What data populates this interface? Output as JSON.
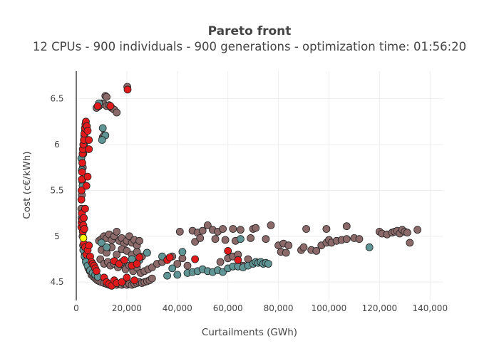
{
  "chart_data": {
    "type": "scatter",
    "title": "Pareto front",
    "subtitle": "12 CPUs - 900 individuals - 900 generations - optimization time: 01:56:20",
    "xlabel": "Curtailments (GWh)",
    "ylabel": "Cost (c€/kWh)",
    "xlim": [
      0,
      145000
    ],
    "ylim": [
      4.3,
      6.8
    ],
    "x_ticks": [
      {
        "value": 0,
        "label": "0"
      },
      {
        "value": 20000,
        "label": "20,000"
      },
      {
        "value": 40000,
        "label": "40,000"
      },
      {
        "value": 60000,
        "label": "60,000"
      },
      {
        "value": 80000,
        "label": "80,000"
      },
      {
        "value": 100000,
        "label": "100,000"
      },
      {
        "value": 120000,
        "label": "120,000"
      },
      {
        "value": 140000,
        "label": "140,000"
      }
    ],
    "y_ticks": [
      {
        "value": 4.5,
        "label": "4.5"
      },
      {
        "value": 5,
        "label": "5"
      },
      {
        "value": 5.5,
        "label": "5.5"
      },
      {
        "value": 6,
        "label": "6"
      },
      {
        "value": 6.5,
        "label": "6.5"
      }
    ],
    "grid": true,
    "legend": "none",
    "colors": {
      "brown": "#8c6a6a",
      "teal": "#5f9595",
      "red": "#e31a1c",
      "yellow": "#ffff00",
      "outline": "#222222",
      "axis": "#444444",
      "grid": "#eeeeee"
    },
    "series": [
      {
        "color": "brown",
        "points": [
          [
            2000,
            5.3
          ],
          [
            2200,
            5.45
          ],
          [
            2400,
            5.6
          ],
          [
            2600,
            5.75
          ],
          [
            2800,
            5.9
          ],
          [
            3000,
            6.0
          ],
          [
            3200,
            6.1
          ],
          [
            3500,
            6.15
          ],
          [
            2100,
            5.2
          ],
          [
            2300,
            5.1
          ],
          [
            2500,
            5.0
          ],
          [
            2700,
            4.9
          ],
          [
            3000,
            4.85
          ],
          [
            3400,
            4.8
          ],
          [
            3800,
            4.75
          ],
          [
            4200,
            4.7
          ],
          [
            4800,
            4.65
          ],
          [
            5400,
            4.62
          ],
          [
            6000,
            4.58
          ],
          [
            6800,
            4.56
          ],
          [
            7600,
            4.54
          ],
          [
            8400,
            4.52
          ],
          [
            9200,
            4.51
          ],
          [
            10000,
            4.5
          ],
          [
            11000,
            4.49
          ],
          [
            12000,
            4.48
          ],
          [
            13000,
            4.47
          ],
          [
            14000,
            4.47
          ],
          [
            15000,
            4.48
          ],
          [
            16000,
            4.47
          ],
          [
            17000,
            4.48
          ],
          [
            18000,
            4.47
          ],
          [
            19000,
            4.48
          ],
          [
            20000,
            4.47
          ],
          [
            21000,
            4.48
          ],
          [
            22000,
            4.47
          ],
          [
            23000,
            4.48
          ],
          [
            24000,
            4.49
          ],
          [
            25000,
            4.5
          ],
          [
            26000,
            4.49
          ],
          [
            27000,
            4.5
          ],
          [
            28000,
            4.51
          ],
          [
            29000,
            4.52
          ],
          [
            30000,
            4.54
          ],
          [
            8000,
            6.4
          ],
          [
            9000,
            6.42
          ],
          [
            10000,
            6.45
          ],
          [
            11000,
            6.44
          ],
          [
            12000,
            6.42
          ],
          [
            13000,
            6.43
          ],
          [
            14000,
            6.4
          ],
          [
            15000,
            6.38
          ],
          [
            16000,
            6.35
          ],
          [
            11500,
            6.53
          ],
          [
            12000,
            6.52
          ],
          [
            10500,
            6.08
          ],
          [
            11000,
            6.1
          ],
          [
            20200,
            6.63
          ],
          [
            9000,
            4.95
          ],
          [
            10000,
            4.97
          ],
          [
            11000,
            5.0
          ],
          [
            12000,
            4.98
          ],
          [
            13000,
            5.02
          ],
          [
            14000,
            4.96
          ],
          [
            15000,
            5.0
          ],
          [
            16000,
            5.05
          ],
          [
            17000,
            4.95
          ],
          [
            18000,
            4.98
          ],
          [
            19000,
            4.92
          ],
          [
            20000,
            4.95
          ],
          [
            21000,
            5.0
          ],
          [
            22000,
            4.93
          ],
          [
            23000,
            4.96
          ],
          [
            24000,
            4.9
          ],
          [
            25000,
            4.95
          ],
          [
            9500,
            4.75
          ],
          [
            11000,
            4.7
          ],
          [
            12500,
            4.72
          ],
          [
            13500,
            4.68
          ],
          [
            15000,
            4.7
          ],
          [
            16500,
            4.66
          ],
          [
            18000,
            4.7
          ],
          [
            19500,
            4.64
          ],
          [
            21000,
            4.68
          ],
          [
            22500,
            4.62
          ],
          [
            24000,
            4.66
          ],
          [
            25500,
            4.6
          ],
          [
            27000,
            4.62
          ],
          [
            28500,
            4.64
          ],
          [
            30000,
            4.66
          ],
          [
            10000,
            4.85
          ],
          [
            12000,
            4.82
          ],
          [
            14000,
            4.88
          ],
          [
            16000,
            4.8
          ],
          [
            18000,
            4.86
          ],
          [
            20000,
            4.84
          ],
          [
            22000,
            4.8
          ],
          [
            24000,
            4.83
          ],
          [
            26000,
            4.78
          ],
          [
            28000,
            4.82
          ],
          [
            32000,
            4.7
          ],
          [
            34000,
            4.72
          ],
          [
            36000,
            4.75
          ],
          [
            38000,
            4.78
          ],
          [
            40000,
            4.7
          ],
          [
            42000,
            4.76
          ],
          [
            44000,
            4.68
          ],
          [
            41000,
            5.05
          ],
          [
            46000,
            5.06
          ],
          [
            48000,
            5.04
          ],
          [
            50000,
            5.06
          ],
          [
            52000,
            5.12
          ],
          [
            54000,
            5.07
          ],
          [
            56000,
            5.05
          ],
          [
            58000,
            5.08
          ],
          [
            62000,
            5.08
          ],
          [
            65000,
            5.07
          ],
          [
            70000,
            5.08
          ],
          [
            71000,
            5.09
          ],
          [
            77000,
            5.12
          ],
          [
            47000,
            4.94
          ],
          [
            49000,
            4.98
          ],
          [
            55000,
            4.97
          ],
          [
            59000,
            4.96
          ],
          [
            63000,
            4.95
          ],
          [
            69000,
            4.98
          ],
          [
            75000,
            4.97
          ],
          [
            80000,
            4.9
          ],
          [
            57000,
            4.72
          ],
          [
            60000,
            4.76
          ],
          [
            62000,
            4.78
          ],
          [
            64000,
            4.8
          ],
          [
            66000,
            4.68
          ],
          [
            68000,
            4.75
          ],
          [
            81000,
            4.83
          ],
          [
            82000,
            4.92
          ],
          [
            83000,
            4.82
          ],
          [
            84000,
            4.9
          ],
          [
            89000,
            4.85
          ],
          [
            90000,
            4.88
          ],
          [
            93000,
            4.85
          ],
          [
            95000,
            4.84
          ],
          [
            97000,
            4.9
          ],
          [
            99000,
            4.93
          ],
          [
            100000,
            4.96
          ],
          [
            101000,
            4.93
          ],
          [
            103000,
            4.95
          ],
          [
            105000,
            4.96
          ],
          [
            107000,
            4.97
          ],
          [
            110000,
            4.98
          ],
          [
            112000,
            4.97
          ],
          [
            91000,
            5.08
          ],
          [
            99000,
            5.08
          ],
          [
            107000,
            5.11
          ],
          [
            120000,
            5.05
          ],
          [
            121000,
            5.03
          ],
          [
            123000,
            5.02
          ],
          [
            125000,
            5.04
          ],
          [
            126000,
            5.05
          ],
          [
            127000,
            5.06
          ],
          [
            128000,
            5.03
          ],
          [
            129000,
            5.07
          ],
          [
            130000,
            5.05
          ],
          [
            131000,
            5.04
          ],
          [
            132000,
            4.93
          ],
          [
            135000,
            5.07
          ]
        ]
      },
      {
        "color": "teal",
        "points": [
          [
            2000,
            5.85
          ],
          [
            2200,
            5.72
          ],
          [
            2500,
            5.55
          ],
          [
            9000,
            6.45
          ],
          [
            10500,
            6.18
          ],
          [
            11500,
            6.1
          ],
          [
            10200,
            6.05
          ],
          [
            2800,
            4.85
          ],
          [
            3300,
            4.78
          ],
          [
            3800,
            4.72
          ],
          [
            4500,
            4.68
          ],
          [
            5500,
            4.63
          ],
          [
            6500,
            4.6
          ],
          [
            7500,
            4.58
          ],
          [
            8500,
            4.56
          ],
          [
            10000,
            4.93
          ],
          [
            12000,
            4.88
          ],
          [
            18000,
            4.72
          ],
          [
            22000,
            4.75
          ],
          [
            25000,
            4.74
          ],
          [
            28000,
            4.82
          ],
          [
            34000,
            4.78
          ],
          [
            36000,
            4.57
          ],
          [
            38000,
            4.65
          ],
          [
            40000,
            4.58
          ],
          [
            42000,
            4.83
          ],
          [
            44000,
            4.6
          ],
          [
            46000,
            4.61
          ],
          [
            48000,
            4.62
          ],
          [
            50000,
            4.64
          ],
          [
            52000,
            4.62
          ],
          [
            54000,
            4.61
          ],
          [
            56000,
            4.63
          ],
          [
            58000,
            4.61
          ],
          [
            60000,
            4.65
          ],
          [
            62000,
            4.67
          ],
          [
            64000,
            4.67
          ],
          [
            65000,
            4.97
          ],
          [
            66000,
            4.66
          ],
          [
            68000,
            4.68
          ],
          [
            70000,
            4.7
          ],
          [
            71000,
            4.72
          ],
          [
            72000,
            4.71
          ],
          [
            73000,
            4.72
          ],
          [
            74000,
            4.7
          ],
          [
            75000,
            4.71
          ],
          [
            76000,
            4.7
          ],
          [
            116000,
            4.88
          ]
        ]
      },
      {
        "color": "red",
        "points": [
          [
            2000,
            5.4
          ],
          [
            2100,
            5.5
          ],
          [
            2200,
            5.62
          ],
          [
            2300,
            5.7
          ],
          [
            2400,
            5.8
          ],
          [
            2500,
            5.9
          ],
          [
            2600,
            5.95
          ],
          [
            2800,
            6.0
          ],
          [
            3000,
            6.05
          ],
          [
            3200,
            6.12
          ],
          [
            3400,
            6.18
          ],
          [
            3600,
            6.22
          ],
          [
            3800,
            6.25
          ],
          [
            4200,
            6.2
          ],
          [
            4500,
            6.15
          ],
          [
            5000,
            6.05
          ],
          [
            2000,
            5.1
          ],
          [
            2100,
            5.15
          ],
          [
            2200,
            5.25
          ],
          [
            2400,
            5.18
          ],
          [
            2600,
            5.05
          ],
          [
            2800,
            5.12
          ],
          [
            3000,
            5.2
          ],
          [
            3200,
            5.08
          ],
          [
            3500,
            5.3
          ],
          [
            4000,
            5.55
          ],
          [
            4500,
            5.65
          ],
          [
            5000,
            5.95
          ],
          [
            3000,
            4.92
          ],
          [
            3500,
            4.88
          ],
          [
            4000,
            4.8
          ],
          [
            4500,
            4.85
          ],
          [
            5000,
            4.9
          ],
          [
            5500,
            4.78
          ],
          [
            6000,
            4.72
          ],
          [
            6500,
            4.7
          ],
          [
            7000,
            4.68
          ],
          [
            7500,
            4.65
          ],
          [
            8000,
            4.62
          ],
          [
            20300,
            6.6
          ],
          [
            8500,
            6.42
          ],
          [
            13500,
            6.42
          ],
          [
            15000,
            4.73
          ],
          [
            17000,
            4.7
          ],
          [
            19000,
            4.74
          ],
          [
            22000,
            4.68
          ],
          [
            24000,
            4.7
          ],
          [
            25000,
            4.77
          ],
          [
            36000,
            4.74
          ],
          [
            37000,
            4.77
          ],
          [
            47000,
            4.75
          ],
          [
            60000,
            4.84
          ],
          [
            64000,
            4.74
          ],
          [
            11000,
            4.55
          ],
          [
            12000,
            4.5
          ],
          [
            13000,
            4.48
          ],
          [
            14000,
            4.46
          ],
          [
            15000,
            4.52
          ],
          [
            16000,
            4.49
          ],
          [
            18000,
            4.5
          ],
          [
            20000,
            4.55
          ],
          [
            23000,
            4.52
          ]
        ]
      },
      {
        "color": "yellow",
        "points": [
          [
            2800,
            4.98
          ]
        ]
      }
    ]
  }
}
